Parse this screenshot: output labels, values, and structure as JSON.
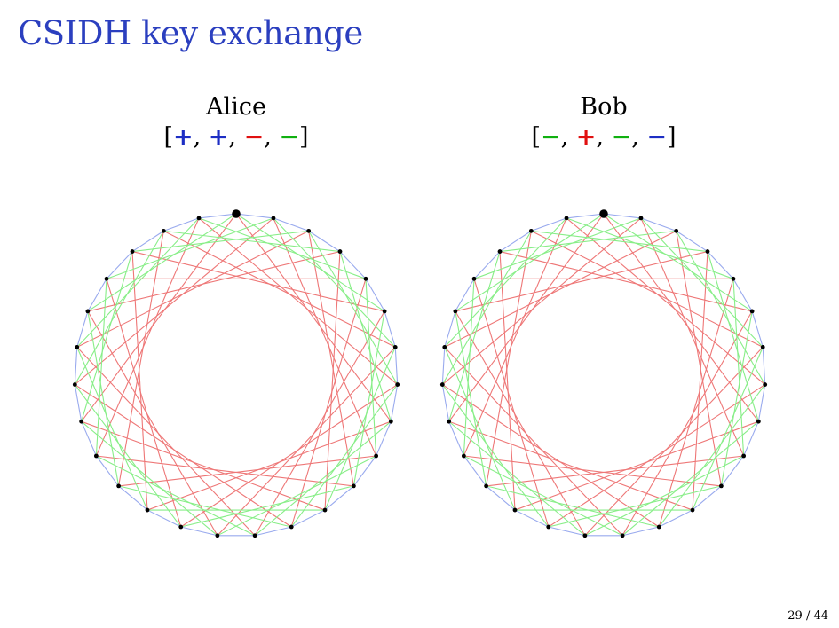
{
  "title": "CSIDH key exchange",
  "alice": {
    "name": "Alice",
    "key": [
      {
        "sign": "+",
        "color": "#1d2ec4"
      },
      {
        "sign": "+",
        "color": "#1d2ec4"
      },
      {
        "sign": "−",
        "color": "#e01010"
      },
      {
        "sign": "−",
        "color": "#10b010"
      }
    ]
  },
  "bob": {
    "name": "Bob",
    "key": [
      {
        "sign": "−",
        "color": "#10b010"
      },
      {
        "sign": "+",
        "color": "#e01010"
      },
      {
        "sign": "−",
        "color": "#10b010"
      },
      {
        "sign": "−",
        "color": "#1d2ec4"
      }
    ]
  },
  "graph": {
    "nodes": 27,
    "edge_steps": [
      {
        "step": 1,
        "color": "#99aaee"
      },
      {
        "step": 5,
        "color": "#88ee88"
      },
      {
        "step": 8,
        "color": "#ee7777"
      }
    ]
  },
  "footer": {
    "page": "29 / 44"
  }
}
